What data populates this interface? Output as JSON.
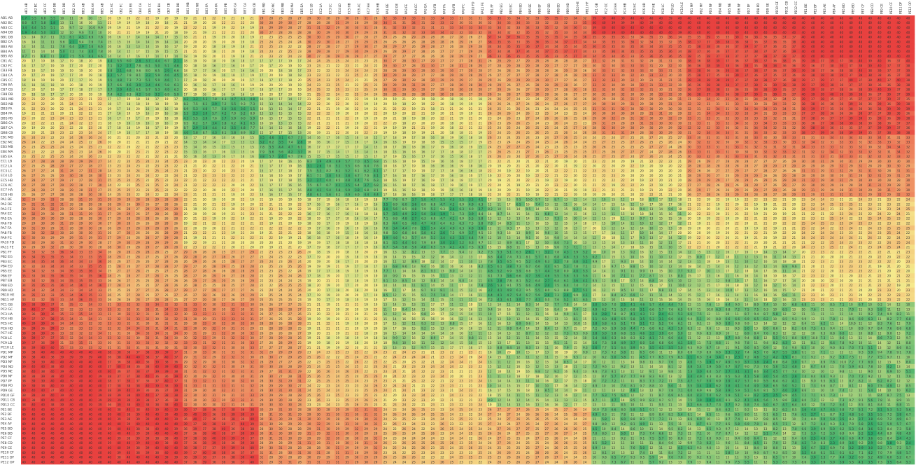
{
  "chart_data": {
    "type": "heatmap",
    "title": "",
    "xlabel": "",
    "ylabel": "",
    "grid": false,
    "legend": "none",
    "color_scale": {
      "low": "#1fa463",
      "mid": "#f6ea8c",
      "high": "#e8413f",
      "domain": [
        0,
        20,
        40
      ]
    },
    "clusters": [
      {
        "name": "AB",
        "count": 4
      },
      {
        "name": "BB",
        "count": 5
      },
      {
        "name": "CB",
        "count": 8
      },
      {
        "name": "DB",
        "count": 8
      },
      {
        "name": "EB",
        "count": 5
      },
      {
        "name": "EC",
        "count": 8
      },
      {
        "name": "PA",
        "count": 11
      },
      {
        "name": "PB",
        "count": 11
      },
      {
        "name": "PC",
        "count": 10
      },
      {
        "name": "PD",
        "count": 12
      },
      {
        "name": "PE",
        "count": 12
      }
    ],
    "labels": [
      "AB1 AB",
      "AB2 BC",
      "AB3 CC",
      "AB4 DB",
      "BB1 DB",
      "BB2 CA",
      "BB3 AB",
      "BB4 AA",
      "BB5 AB",
      "CB1 AC",
      "CB2 FC",
      "CB3 FB",
      "CB4 CA",
      "CB5 CC",
      "CB6 BA",
      "CB7 CB",
      "CB8 DB",
      "DB1 MB",
      "DB2 NB",
      "DB3 FA",
      "DB4 PA",
      "DB5 PB",
      "DB6 CA",
      "DB7 CA",
      "DB8 CB",
      "EB1 MD",
      "EB2 MC",
      "EB3 MB",
      "EB4 MA",
      "EB5 EA",
      "EC1 LB",
      "EC2 LA",
      "EC3 LC",
      "EC4 LD",
      "EC5 HB",
      "EC6 AC",
      "EC7 HA",
      "EC8 HB",
      "PA1 BE",
      "PA2 DE",
      "PA3 FE",
      "PA4 EC",
      "PA5 EA",
      "PA6 FB",
      "PA7 FA",
      "PA8 FB",
      "PA9 FC",
      "PA10 FD",
      "PA11 FE",
      "PB1 FF",
      "PB2 EG",
      "PB3 EC",
      "PB4 ED",
      "PB5 EE",
      "PB6 EF",
      "PB7 EB",
      "PB8 ED",
      "PB9 HD",
      "PB10 HE",
      "PB11 HF",
      "PC1 GB",
      "PC2 GC",
      "PC3 HA",
      "PC4 HB",
      "PC5 HC",
      "PC6 HD",
      "PC7 HE",
      "PC8 LC",
      "PC9 LD",
      "PC10 LE",
      "PD1 MP",
      "PD2 MF",
      "PD3 NF",
      "PD4 ND",
      "PD5 NE",
      "PD6 NF",
      "PD7 PF",
      "PD8 PD",
      "PD9 GE",
      "PD10 GF",
      "PD11 CB",
      "PD12 CC",
      "PE1 BE",
      "PE2 BF",
      "PE3 AE",
      "PE4 AF",
      "PE5 BD",
      "PE6 BD",
      "PE7 CF",
      "PE8 CD",
      "PE9 CE",
      "PE10 CF",
      "PE11 DF",
      "PE12 OP"
    ]
  }
}
